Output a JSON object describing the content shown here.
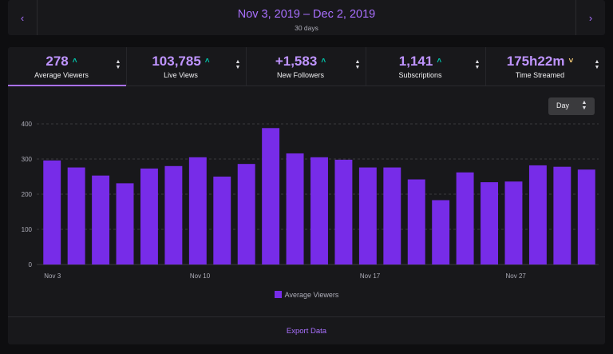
{
  "date_nav": {
    "range": "Nov 3, 2019 – Dec 2, 2019",
    "duration": "30 days",
    "prev_icon": "chevron-left-icon",
    "next_icon": "chevron-right-icon"
  },
  "stats": [
    {
      "value": "278",
      "label": "Average Viewers",
      "trend": "up",
      "active": true
    },
    {
      "value": "103,785",
      "label": "Live Views",
      "trend": "up",
      "active": false
    },
    {
      "value": "+1,583",
      "label": "New Followers",
      "trend": "up",
      "active": false
    },
    {
      "value": "1,141",
      "label": "Subscriptions",
      "trend": "up",
      "active": false
    },
    {
      "value": "175h22m",
      "label": "Time Streamed",
      "trend": "down",
      "active": false
    }
  ],
  "granularity": {
    "selected": "Day"
  },
  "colors": {
    "accent": "#a970ff",
    "bar": "#772ce8",
    "trend_up": "#00c7ac",
    "trend_down": "#ffd37a"
  },
  "chart_data": {
    "type": "bar",
    "yticks": [
      "400",
      "300",
      "200",
      "100",
      "0"
    ],
    "ylim": [
      0,
      400
    ],
    "x_tick_labels": [
      "Nov 3",
      "Nov 10",
      "Nov 17",
      "Nov 27"
    ],
    "values": [
      296,
      276,
      253,
      231,
      273,
      280,
      305,
      250,
      286,
      388,
      316,
      305,
      298,
      276,
      276,
      242,
      183,
      262,
      234,
      236,
      282,
      278,
      270
    ],
    "series": [
      {
        "name": "Average Viewers",
        "values": [
          296,
          276,
          253,
          231,
          273,
          280,
          305,
          250,
          286,
          388,
          316,
          305,
          298,
          276,
          276,
          242,
          183,
          262,
          234,
          236,
          282,
          278,
          270
        ]
      }
    ],
    "grid": true,
    "legend_position": "bottom"
  },
  "footer": {
    "export_label": "Export Data"
  }
}
